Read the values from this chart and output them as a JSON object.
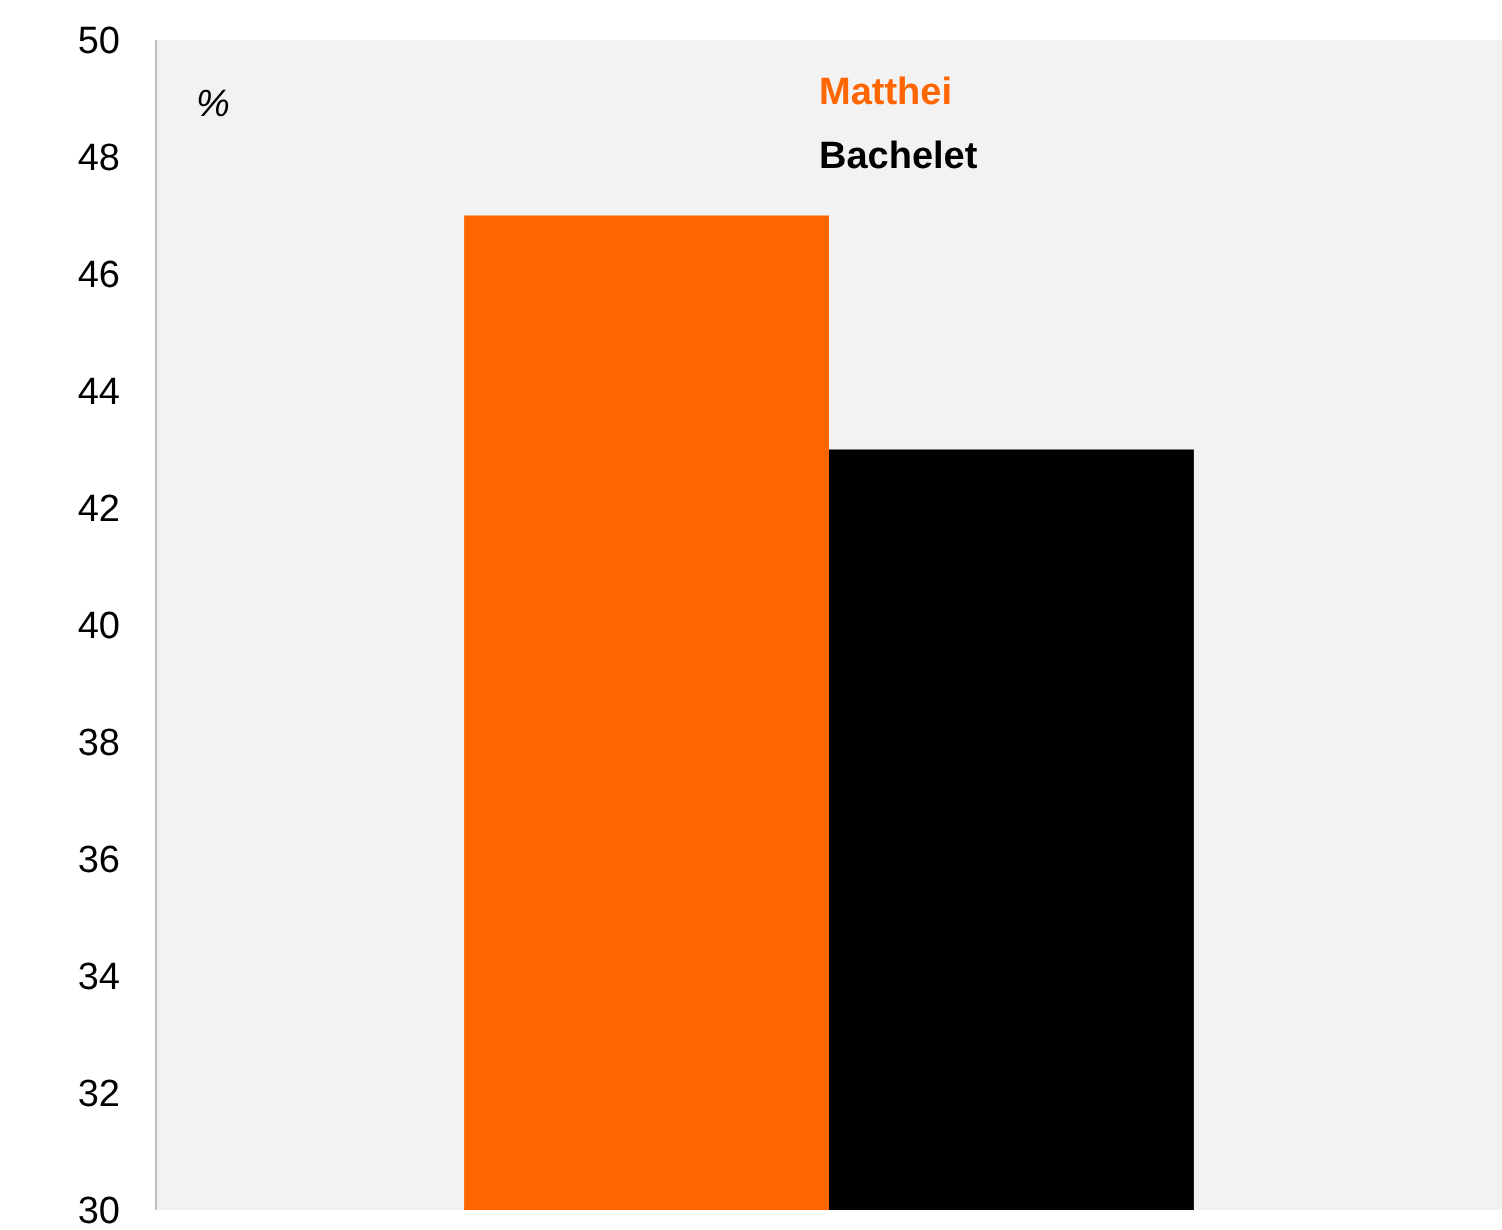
{
  "chart_data": {
    "type": "bar",
    "ylabel": "%",
    "categories": [
      null
    ],
    "series": [
      {
        "name": "Matthei",
        "color": "#ff6600",
        "values": [
          47
        ]
      },
      {
        "name": "Bachelet",
        "color": "#000000",
        "values": [
          43
        ]
      }
    ],
    "ylim": [
      30,
      50
    ],
    "yticks": [
      30,
      32,
      34,
      36,
      38,
      40,
      42,
      44,
      46,
      48,
      50
    ],
    "grid": false,
    "legend": "top"
  }
}
